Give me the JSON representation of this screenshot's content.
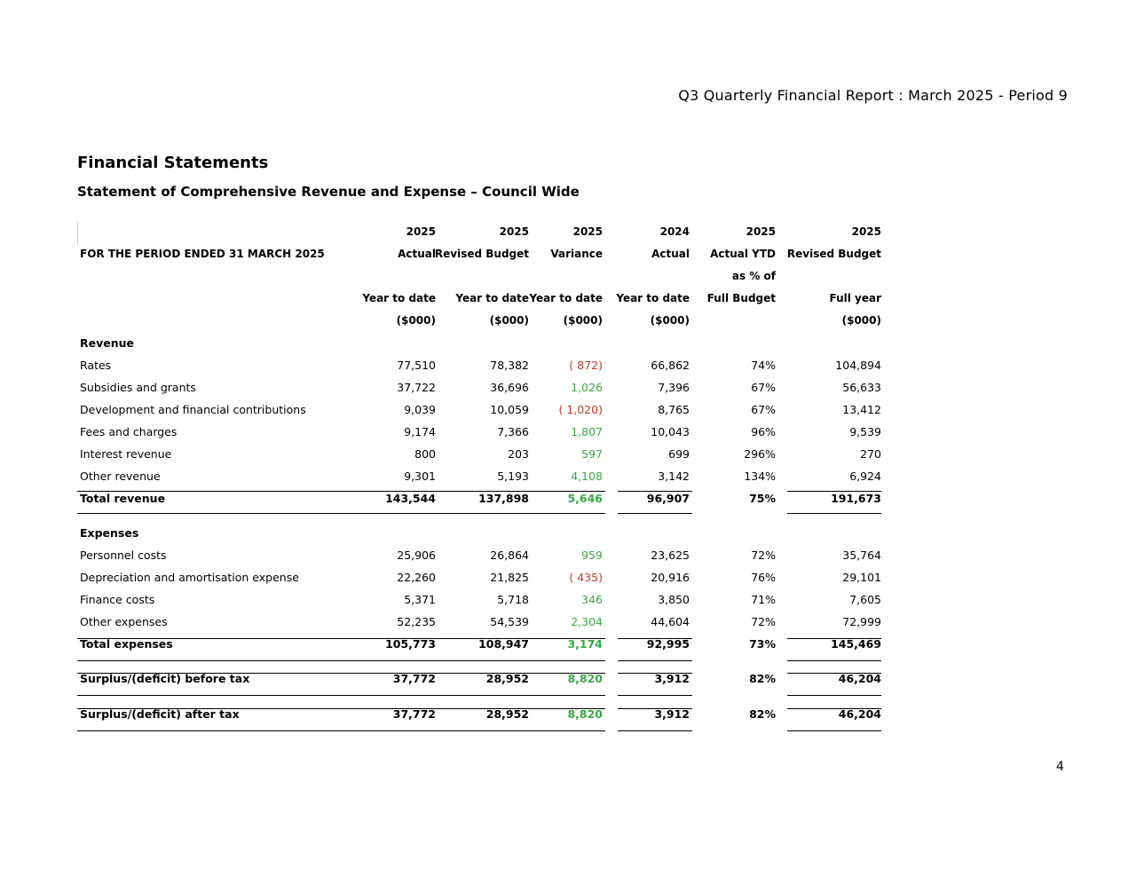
{
  "report_title": "Q3 Quarterly Financial Report :  March 2025 - Period 9",
  "heading": "Financial Statements",
  "subheading": "Statement of Comprehensive Revenue and Expense – Council Wide",
  "page_number": "4",
  "table": {
    "header_rows": [
      [
        "",
        "2025",
        "2025",
        "2025",
        "2024",
        "2025",
        "2025"
      ],
      [
        "FOR THE PERIOD ENDED 31 MARCH 2025",
        "Actual",
        "Revised Budget",
        "Variance",
        "Actual",
        "Actual YTD",
        "Revised Budget"
      ],
      [
        "",
        "",
        "",
        "",
        "",
        "as % of",
        ""
      ],
      [
        "",
        "Year to date",
        "Year to date",
        "Year to date",
        "Year to date",
        "Full Budget",
        "Full year"
      ],
      [
        "",
        "($000)",
        "($000)",
        "($000)",
        "($000)",
        "",
        "($000)"
      ]
    ],
    "revenue_label": "Revenue",
    "revenue_rows": [
      {
        "label": "Rates",
        "actual": "77,510",
        "budget": "78,382",
        "variance": "( 872)",
        "actual_prev": "66,862",
        "pct": "74%",
        "full_year": "104,894",
        "status": "neg"
      },
      {
        "label": "Subsidies and grants",
        "actual": "37,722",
        "budget": "36,696",
        "variance": "1,026",
        "actual_prev": "7,396",
        "pct": "67%",
        "full_year": "56,633",
        "status": "pos"
      },
      {
        "label": "Development and financial contributions",
        "actual": "9,039",
        "budget": "10,059",
        "variance": "( 1,020)",
        "actual_prev": "8,765",
        "pct": "67%",
        "full_year": "13,412",
        "status": "neg"
      },
      {
        "label": "Fees and charges",
        "actual": "9,174",
        "budget": "7,366",
        "variance": "1,807",
        "actual_prev": "10,043",
        "pct": "96%",
        "full_year": "9,539",
        "status": "pos"
      },
      {
        "label": "Interest revenue",
        "actual": "800",
        "budget": "203",
        "variance": "597",
        "actual_prev": "699",
        "pct": "296%",
        "full_year": "270",
        "status": "pos"
      },
      {
        "label": "Other revenue",
        "actual": "9,301",
        "budget": "5,193",
        "variance": "4,108",
        "actual_prev": "3,142",
        "pct": "134%",
        "full_year": "6,924",
        "status": "pos"
      }
    ],
    "total_revenue": {
      "label": "Total revenue",
      "actual": "143,544",
      "budget": "137,898",
      "variance": "5,646",
      "actual_prev": "96,907",
      "pct": "75%",
      "full_year": "191,673"
    },
    "expenses_label": "Expenses",
    "expense_rows": [
      {
        "label": "Personnel costs",
        "actual": "25,906",
        "budget": "26,864",
        "variance": "959",
        "actual_prev": "23,625",
        "pct": "72%",
        "full_year": "35,764",
        "status": "pos"
      },
      {
        "label": "Depreciation and amortisation expense",
        "actual": "22,260",
        "budget": "21,825",
        "variance": "( 435)",
        "actual_prev": "20,916",
        "pct": "76%",
        "full_year": "29,101",
        "status": "neg"
      },
      {
        "label": "Finance costs",
        "actual": "5,371",
        "budget": "5,718",
        "variance": "346",
        "actual_prev": "3,850",
        "pct": "71%",
        "full_year": "7,605",
        "status": "pos"
      },
      {
        "label": "Other expenses",
        "actual": "52,235",
        "budget": "54,539",
        "variance": "2,304",
        "actual_prev": "44,604",
        "pct": "72%",
        "full_year": "72,999",
        "status": "pos"
      }
    ],
    "total_expenses": {
      "label": "Total expenses",
      "actual": "105,773",
      "budget": "108,947",
      "variance": "3,174",
      "actual_prev": "92,995",
      "pct": "73%",
      "full_year": "145,469"
    },
    "surplus_before_tax": {
      "label": "Surplus/(deficit) before tax",
      "actual": "37,772",
      "budget": "28,952",
      "variance": "8,820",
      "actual_prev": "3,912",
      "pct": "82%",
      "full_year": "46,204"
    },
    "surplus_after_tax": {
      "label": "Surplus/(deficit) after tax",
      "actual": "37,772",
      "budget": "28,952",
      "variance": "8,820",
      "actual_prev": "3,912",
      "pct": "82%",
      "full_year": "46,204"
    }
  },
  "colors": {
    "positive": "#3aa845",
    "negative": "#c0392b"
  }
}
